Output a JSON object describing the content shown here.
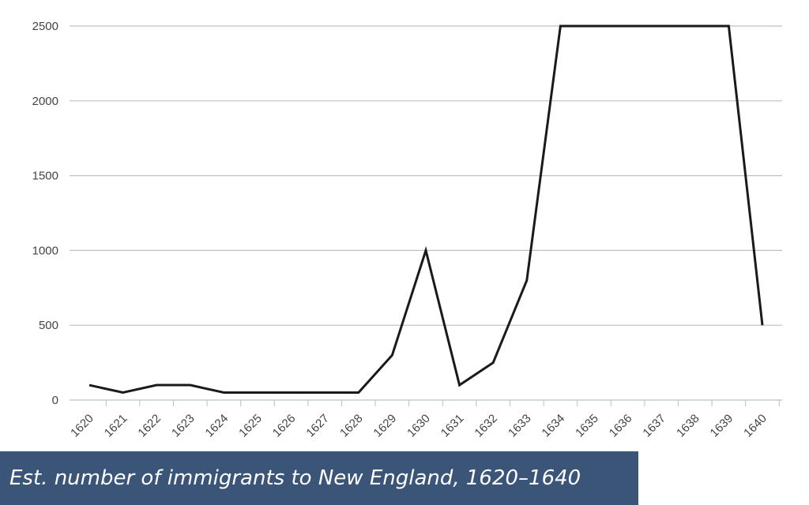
{
  "chart_data": {
    "type": "line",
    "title": "Est. number of immigrants to New England, 1620–1640",
    "categories": [
      "1620",
      "1621",
      "1622",
      "1623",
      "1624",
      "1625",
      "1626",
      "1627",
      "1628",
      "1629",
      "1630",
      "1631",
      "1632",
      "1633",
      "1634",
      "1635",
      "1636",
      "1637",
      "1638",
      "1639",
      "1640"
    ],
    "values": [
      100,
      50,
      100,
      100,
      50,
      50,
      50,
      50,
      50,
      300,
      1000,
      100,
      250,
      800,
      2500,
      2500,
      2500,
      2500,
      2500,
      2500,
      500
    ],
    "color": "#1a1a1a",
    "ylim": [
      0,
      2500
    ],
    "yticks": [
      0,
      500,
      1000,
      1500,
      2000,
      2500
    ],
    "grid": true
  }
}
